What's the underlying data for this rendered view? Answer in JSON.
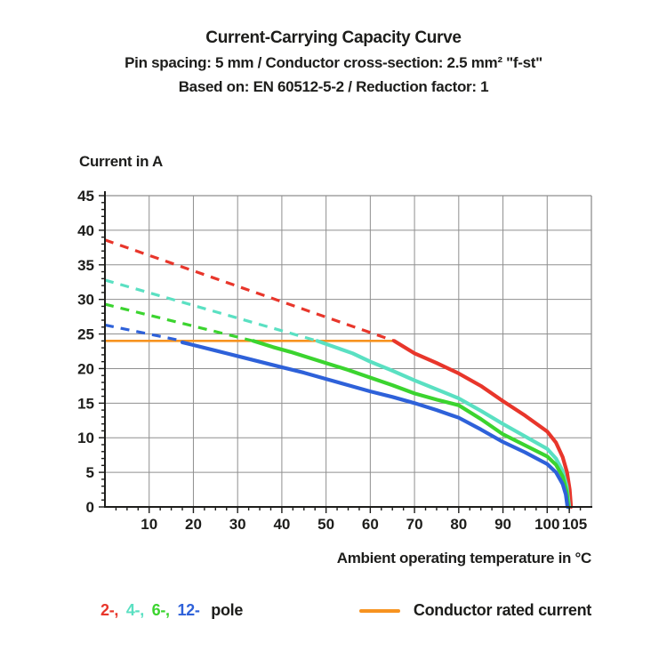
{
  "header": {
    "title": "Current-Carrying Capacity Curve",
    "subtitle1": "Pin spacing: 5 mm / Conductor cross-section: 2.5 mm² \"f-st\"",
    "subtitle2": "Based on: EN 60512-5-2 / Reduction factor: 1"
  },
  "chart_data": {
    "type": "line",
    "xlabel": "Ambient operating temperature in °C",
    "ylabel": "Current in A",
    "xlim": [
      0,
      110
    ],
    "ylim": [
      0,
      45
    ],
    "xticks": [
      10,
      20,
      30,
      40,
      50,
      60,
      70,
      80,
      90,
      100,
      105
    ],
    "yticks": [
      0,
      5,
      10,
      15,
      20,
      25,
      30,
      35,
      40,
      45
    ],
    "minor_x_step": 2.5,
    "minor_y_step": 1,
    "grid": true,
    "grid_color": "#8f8f8f",
    "axis_color": "#1d1d1b",
    "rated_line": {
      "y": 24,
      "x0": 0,
      "x1": 65.4,
      "color": "#f79320",
      "label": "Conductor rated current"
    },
    "series": [
      {
        "name": "2-pole",
        "color": "#e8362b",
        "dashed": [
          [
            0,
            38.6
          ],
          [
            65.4,
            24
          ]
        ],
        "solid": [
          [
            65.4,
            24
          ],
          [
            70,
            22.2
          ],
          [
            75,
            20.8
          ],
          [
            80,
            19.3
          ],
          [
            85,
            17.5
          ],
          [
            90,
            15.3
          ],
          [
            95,
            13.2
          ],
          [
            100,
            10.9
          ],
          [
            102,
            9.3
          ],
          [
            103.5,
            7.2
          ],
          [
            104.5,
            5.0
          ],
          [
            105.1,
            2.5
          ],
          [
            105.4,
            0
          ]
        ]
      },
      {
        "name": "4-pole",
        "color": "#5ae0c2",
        "dashed": [
          [
            0,
            32.8
          ],
          [
            48,
            24
          ]
        ],
        "solid": [
          [
            48,
            24
          ],
          [
            52,
            23.1
          ],
          [
            56,
            22.2
          ],
          [
            60,
            21.0
          ],
          [
            65,
            19.7
          ],
          [
            70,
            18.3
          ],
          [
            75,
            17.0
          ],
          [
            80,
            15.7
          ],
          [
            85,
            13.9
          ],
          [
            90,
            12.0
          ],
          [
            95,
            10.2
          ],
          [
            100,
            8.4
          ],
          [
            102,
            7.0
          ],
          [
            103.5,
            5.2
          ],
          [
            104.4,
            3.0
          ],
          [
            105,
            0
          ]
        ]
      },
      {
        "name": "6-pole",
        "color": "#3bd42f",
        "dashed": [
          [
            0,
            29.3
          ],
          [
            33.5,
            24
          ]
        ],
        "solid": [
          [
            33.5,
            24
          ],
          [
            38,
            23.1
          ],
          [
            42,
            22.4
          ],
          [
            46,
            21.6
          ],
          [
            50,
            20.8
          ],
          [
            55,
            19.8
          ],
          [
            60,
            18.7
          ],
          [
            65,
            17.6
          ],
          [
            70,
            16.4
          ],
          [
            75,
            15.5
          ],
          [
            80,
            14.7
          ],
          [
            85,
            12.7
          ],
          [
            90,
            10.5
          ],
          [
            95,
            8.9
          ],
          [
            100,
            7.3
          ],
          [
            102,
            6.1
          ],
          [
            103.5,
            4.4
          ],
          [
            104.4,
            2.2
          ],
          [
            104.8,
            0
          ]
        ]
      },
      {
        "name": "12-pole",
        "color": "#2e61d9",
        "dashed": [
          [
            0,
            26.3
          ],
          [
            17.5,
            24
          ]
        ],
        "solid": [
          [
            17.5,
            23.8
          ],
          [
            20,
            23.4
          ],
          [
            25,
            22.6
          ],
          [
            30,
            21.8
          ],
          [
            35,
            21.0
          ],
          [
            40,
            20.2
          ],
          [
            45,
            19.4
          ],
          [
            50,
            18.5
          ],
          [
            55,
            17.6
          ],
          [
            60,
            16.7
          ],
          [
            65,
            15.9
          ],
          [
            70,
            15.0
          ],
          [
            75,
            14.0
          ],
          [
            80,
            12.9
          ],
          [
            85,
            11.2
          ],
          [
            90,
            9.4
          ],
          [
            95,
            7.9
          ],
          [
            100,
            6.2
          ],
          [
            102,
            5.0
          ],
          [
            103.5,
            3.3
          ],
          [
            104.2,
            1.8
          ],
          [
            104.6,
            0
          ]
        ]
      }
    ],
    "legend": {
      "pole_items": [
        {
          "label": "2-,",
          "color": "#e8362b"
        },
        {
          "label": "4-,",
          "color": "#5ae0c2"
        },
        {
          "label": "6-,",
          "color": "#3bd42f"
        },
        {
          "label": "12-",
          "color": "#2e61d9"
        }
      ],
      "pole_suffix": "pole",
      "rated_label": "Conductor rated current"
    }
  }
}
